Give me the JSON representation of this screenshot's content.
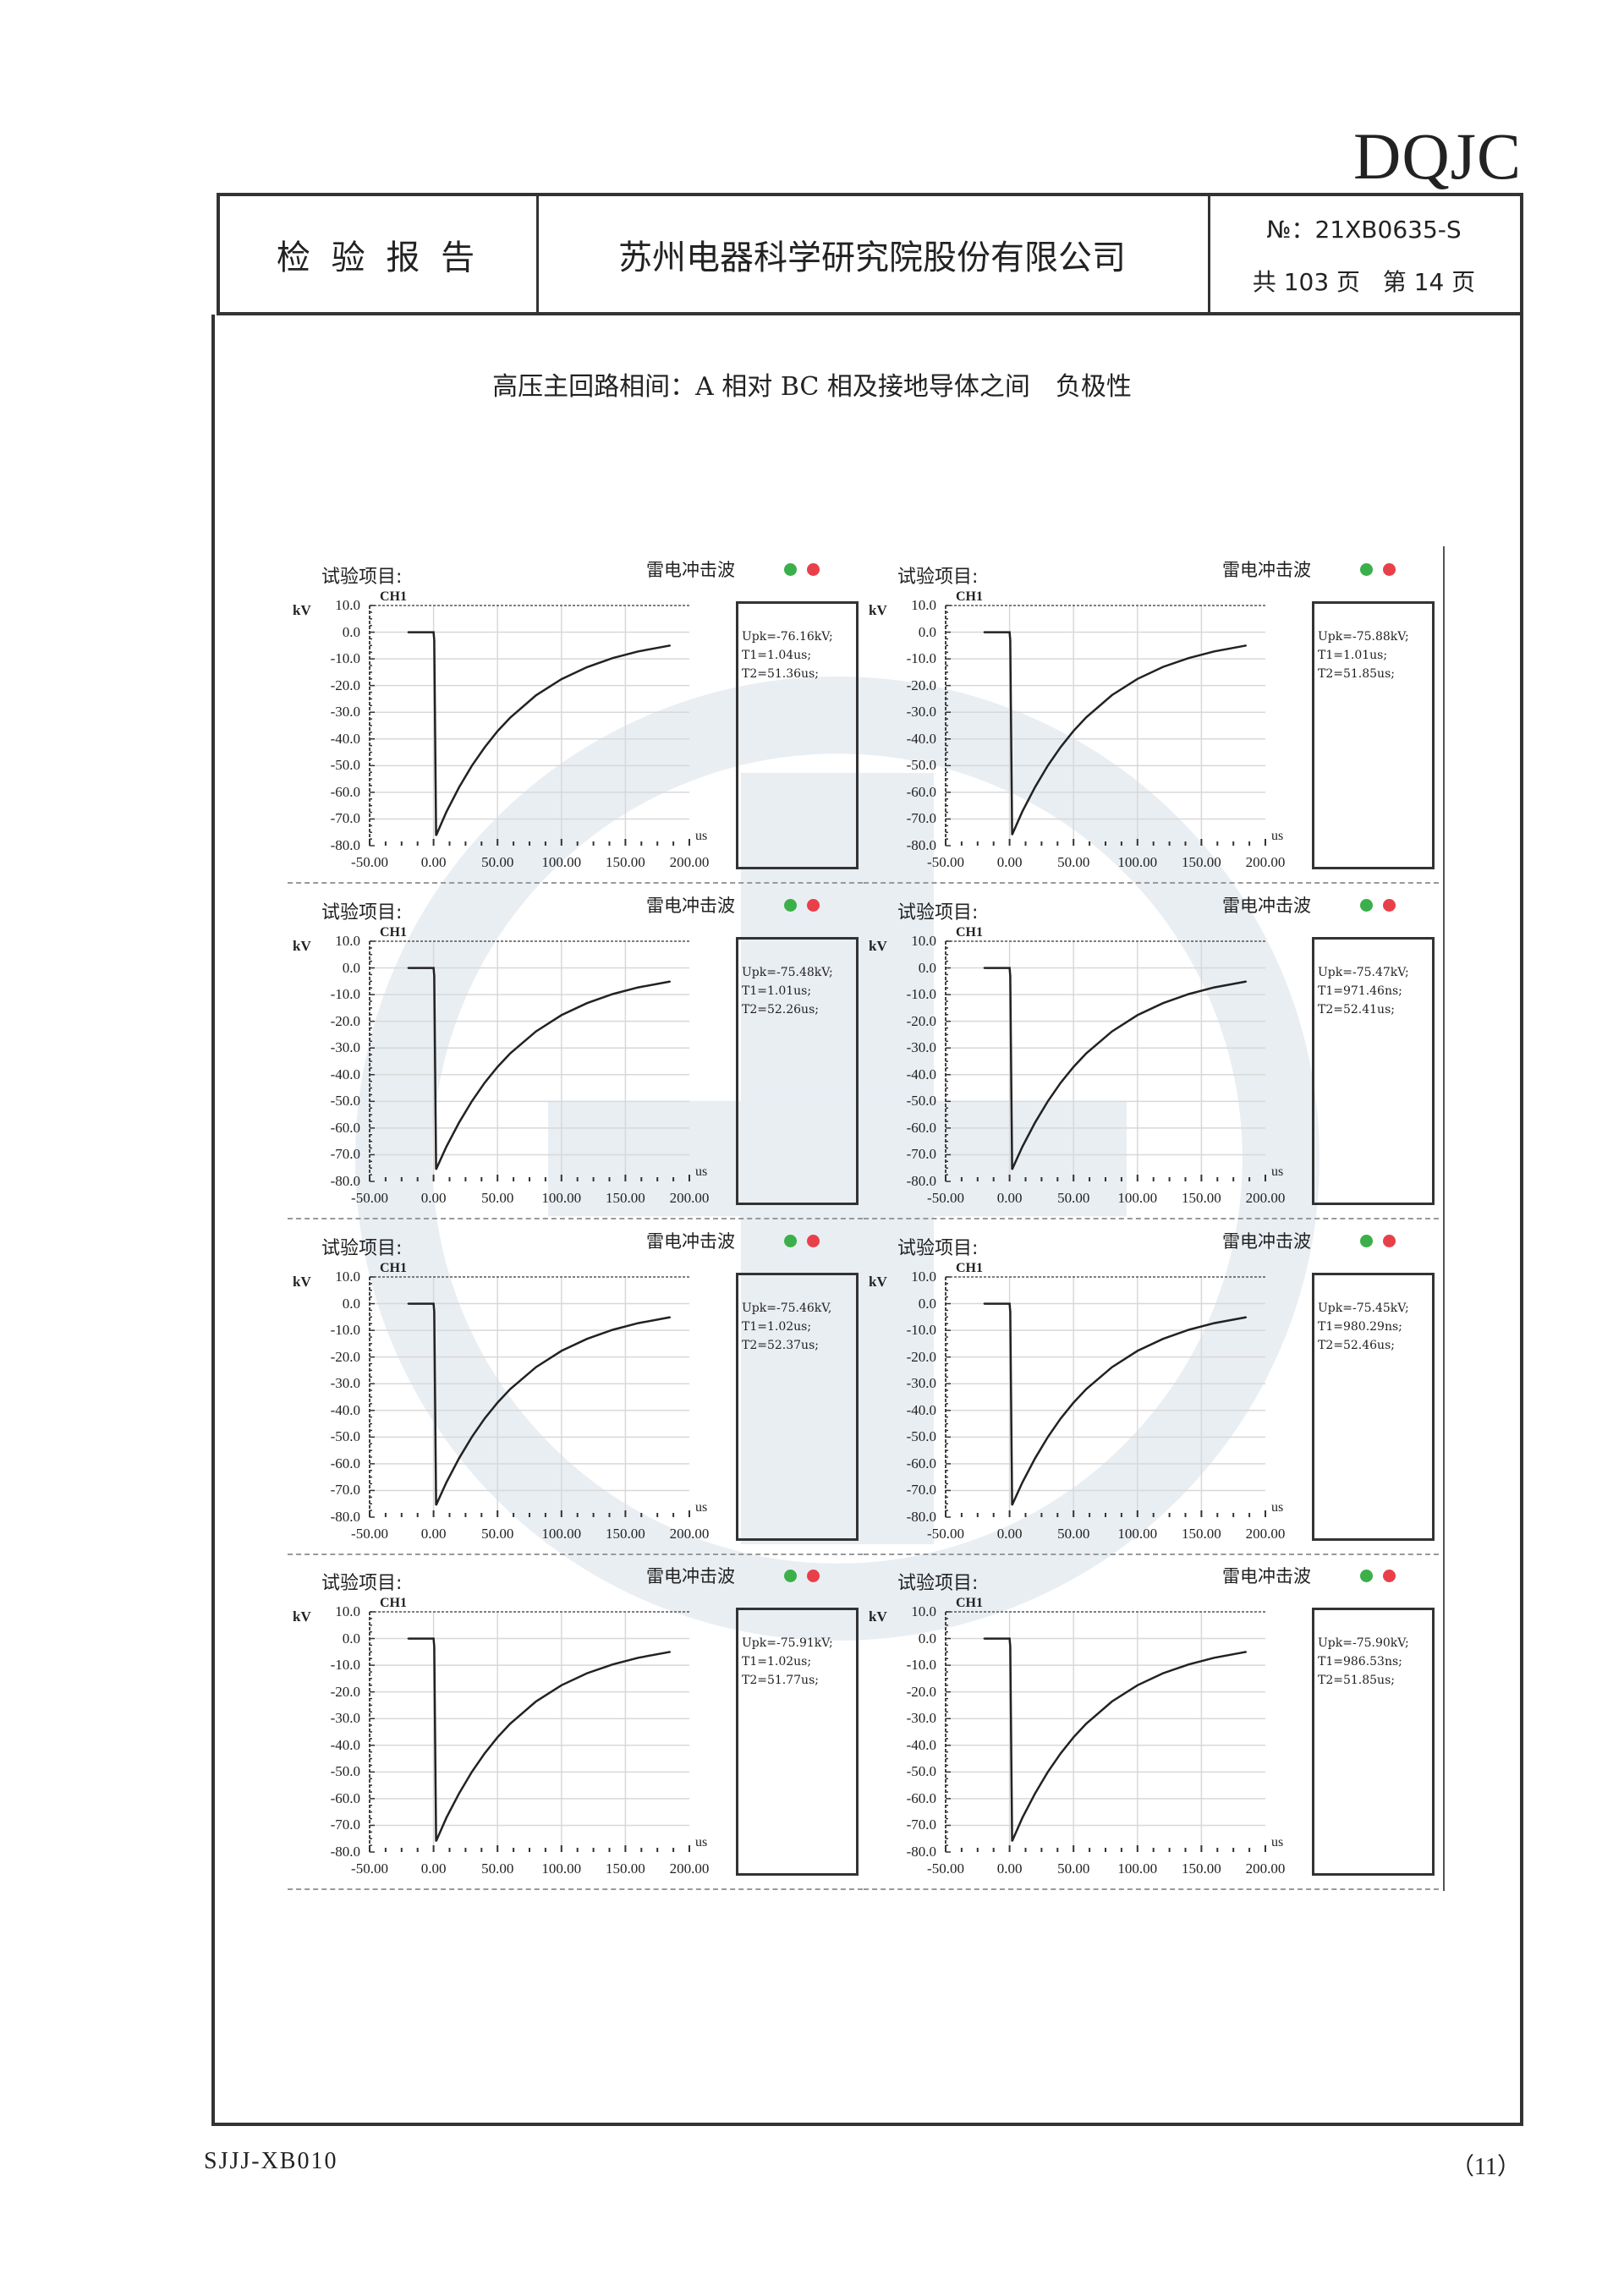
{
  "brand": "DQJC",
  "header": {
    "report_label": "检 验 报 告",
    "company": "苏州电器科学研究院股份有限公司",
    "number": "№：21XB0635-S",
    "pages_total": "共 103 页",
    "page_current": "第 14 页"
  },
  "subtitle": "高压主回路相间：A 相对 BC 相及接地导体之间　负极性",
  "footer": {
    "form_code": "SJJJ-XB010",
    "page_index": "（11）"
  },
  "colors": {
    "ok_indicator": "#3bb04a",
    "alarm_indicator": "#e8404a",
    "trace": "#222222",
    "grid": "#d8d8d8"
  },
  "chart_data": [
    {
      "type": "line",
      "test_item_label": "试验项目:",
      "wave_type": "雷电冲击波",
      "channel": "CH1",
      "ylabel": "kV",
      "xlabel": "us",
      "xlim": [
        -50,
        200
      ],
      "ylim": [
        -80,
        10
      ],
      "grid": true,
      "xtick_labels": [
        "-50.00",
        "0.00",
        "50.00",
        "100.00",
        "150.00",
        "200.00"
      ],
      "ytick_labels": [
        "10.0",
        "0.0",
        "-10.0",
        "-20.0",
        "-30.0",
        "-40.0",
        "-50.0",
        "-60.0",
        "-70.0",
        "-80.0"
      ],
      "results": [
        "Upk=-76.16kV;",
        "T1=1.04us;",
        "T2=51.36us;"
      ],
      "series": [
        {
          "x": [
            -20,
            0,
            0.5,
            2,
            10,
            20,
            30,
            40,
            50,
            60,
            80,
            100,
            120,
            140,
            160,
            185
          ],
          "y": [
            0,
            0,
            -3,
            -76.16,
            -67.4,
            -58.1,
            -50.0,
            -43.1,
            -37.1,
            -32.0,
            -23.7,
            -17.6,
            -13.1,
            -9.7,
            -7.2,
            -5.0
          ]
        }
      ]
    },
    {
      "type": "line",
      "test_item_label": "试验项目:",
      "wave_type": "雷电冲击波",
      "channel": "CH1",
      "ylabel": "kV",
      "xlabel": "us",
      "xlim": [
        -50,
        200
      ],
      "ylim": [
        -80,
        10
      ],
      "grid": true,
      "xtick_labels": [
        "-50.00",
        "0.00",
        "50.00",
        "100.00",
        "150.00",
        "200.00"
      ],
      "ytick_labels": [
        "10.0",
        "0.0",
        "-10.0",
        "-20.0",
        "-30.0",
        "-40.0",
        "-50.0",
        "-60.0",
        "-70.0",
        "-80.0"
      ],
      "results": [
        "Upk=-75.88kV;",
        "T1=1.01us;",
        "T2=51.85us;"
      ],
      "series": [
        {
          "x": [
            -20,
            0,
            0.5,
            2,
            10,
            20,
            30,
            40,
            50,
            60,
            80,
            100,
            120,
            140,
            160,
            185
          ],
          "y": [
            0,
            0,
            -3,
            -75.88,
            -67.2,
            -58.0,
            -49.9,
            -43.0,
            -37.0,
            -31.9,
            -23.6,
            -17.5,
            -13.0,
            -9.7,
            -7.2,
            -5.0
          ]
        }
      ]
    },
    {
      "type": "line",
      "test_item_label": "试验项目:",
      "wave_type": "雷电冲击波",
      "channel": "CH1",
      "ylabel": "kV",
      "xlabel": "us",
      "xlim": [
        -50,
        200
      ],
      "ylim": [
        -80,
        10
      ],
      "grid": true,
      "xtick_labels": [
        "-50.00",
        "0.00",
        "50.00",
        "100.00",
        "150.00",
        "200.00"
      ],
      "ytick_labels": [
        "10.0",
        "0.0",
        "-10.0",
        "-20.0",
        "-30.0",
        "-40.0",
        "-50.0",
        "-60.0",
        "-70.0",
        "-80.0"
      ],
      "results": [
        "Upk=-75.48kV;",
        "T1=1.01us;",
        "T2=52.26us;"
      ],
      "series": [
        {
          "x": [
            -20,
            0,
            0.5,
            2,
            10,
            20,
            30,
            40,
            50,
            60,
            80,
            100,
            120,
            140,
            160,
            185
          ],
          "y": [
            0,
            0,
            -3,
            -75.48,
            -67.0,
            -57.9,
            -49.9,
            -43.0,
            -37.1,
            -32.0,
            -23.8,
            -17.7,
            -13.2,
            -9.8,
            -7.3,
            -5.1
          ]
        }
      ]
    },
    {
      "type": "line",
      "test_item_label": "试验项目:",
      "wave_type": "雷电冲击波",
      "channel": "CH1",
      "ylabel": "kV",
      "xlabel": "us",
      "xlim": [
        -50,
        200
      ],
      "ylim": [
        -80,
        10
      ],
      "grid": true,
      "xtick_labels": [
        "-50.00",
        "0.00",
        "50.00",
        "100.00",
        "150.00",
        "200.00"
      ],
      "ytick_labels": [
        "10.0",
        "0.0",
        "-10.0",
        "-20.0",
        "-30.0",
        "-40.0",
        "-50.0",
        "-60.0",
        "-70.0",
        "-80.0"
      ],
      "results": [
        "Upk=-75.47kV;",
        "T1=971.46ns;",
        "T2=52.41us;"
      ],
      "series": [
        {
          "x": [
            -20,
            0,
            0.5,
            2,
            10,
            20,
            30,
            40,
            50,
            60,
            80,
            100,
            120,
            140,
            160,
            185
          ],
          "y": [
            0,
            0,
            -3,
            -75.47,
            -67.0,
            -57.9,
            -49.9,
            -43.0,
            -37.1,
            -32.0,
            -23.8,
            -17.7,
            -13.2,
            -9.8,
            -7.3,
            -5.1
          ]
        }
      ]
    },
    {
      "type": "line",
      "test_item_label": "试验项目:",
      "wave_type": "雷电冲击波",
      "channel": "CH1",
      "ylabel": "kV",
      "xlabel": "us",
      "xlim": [
        -50,
        200
      ],
      "ylim": [
        -80,
        10
      ],
      "grid": true,
      "xtick_labels": [
        "-50.00",
        "0.00",
        "50.00",
        "100.00",
        "150.00",
        "200.00"
      ],
      "ytick_labels": [
        "10.0",
        "0.0",
        "-10.0",
        "-20.0",
        "-30.0",
        "-40.0",
        "-50.0",
        "-60.0",
        "-70.0",
        "-80.0"
      ],
      "results": [
        "Upk=-75.46kV,",
        "T1=1.02us;",
        "T2=52.37us;"
      ],
      "series": [
        {
          "x": [
            -20,
            0,
            0.5,
            2,
            10,
            20,
            30,
            40,
            50,
            60,
            80,
            100,
            120,
            140,
            160,
            185
          ],
          "y": [
            0,
            0,
            -3,
            -75.46,
            -67.0,
            -57.9,
            -49.9,
            -43.0,
            -37.1,
            -32.0,
            -23.8,
            -17.7,
            -13.2,
            -9.8,
            -7.3,
            -5.1
          ]
        }
      ]
    },
    {
      "type": "line",
      "test_item_label": "试验项目:",
      "wave_type": "雷电冲击波",
      "channel": "CH1",
      "ylabel": "kV",
      "xlabel": "us",
      "xlim": [
        -50,
        200
      ],
      "ylim": [
        -80,
        10
      ],
      "grid": true,
      "xtick_labels": [
        "-50.00",
        "0.00",
        "50.00",
        "100.00",
        "150.00",
        "200.00"
      ],
      "ytick_labels": [
        "10.0",
        "0.0",
        "-10.0",
        "-20.0",
        "-30.0",
        "-40.0",
        "-50.0",
        "-60.0",
        "-70.0",
        "-80.0"
      ],
      "results": [
        "Upk=-75.45kV;",
        "T1=980.29ns;",
        "T2=52.46us;"
      ],
      "series": [
        {
          "x": [
            -20,
            0,
            0.5,
            2,
            10,
            20,
            30,
            40,
            50,
            60,
            80,
            100,
            120,
            140,
            160,
            185
          ],
          "y": [
            0,
            0,
            -3,
            -75.45,
            -67.0,
            -57.9,
            -49.9,
            -43.0,
            -37.1,
            -32.0,
            -23.8,
            -17.7,
            -13.2,
            -9.8,
            -7.3,
            -5.1
          ]
        }
      ]
    },
    {
      "type": "line",
      "test_item_label": "试验项目:",
      "wave_type": "雷电冲击波",
      "channel": "CH1",
      "ylabel": "kV",
      "xlabel": "us",
      "xlim": [
        -50,
        200
      ],
      "ylim": [
        -80,
        10
      ],
      "grid": true,
      "xtick_labels": [
        "-50.00",
        "0.00",
        "50.00",
        "100.00",
        "150.00",
        "200.00"
      ],
      "ytick_labels": [
        "10.0",
        "0.0",
        "-10.0",
        "-20.0",
        "-30.0",
        "-40.0",
        "-50.0",
        "-60.0",
        "-70.0",
        "-80.0"
      ],
      "results": [
        "Upk=-75.91kV;",
        "T1=1.02us;",
        "T2=51.77us;"
      ],
      "series": [
        {
          "x": [
            -20,
            0,
            0.5,
            2,
            10,
            20,
            30,
            40,
            50,
            60,
            80,
            100,
            120,
            140,
            160,
            185
          ],
          "y": [
            0,
            0,
            -3,
            -75.91,
            -67.2,
            -58.0,
            -49.9,
            -43.0,
            -37.0,
            -31.9,
            -23.6,
            -17.5,
            -13.0,
            -9.7,
            -7.2,
            -5.0
          ]
        }
      ]
    },
    {
      "type": "line",
      "test_item_label": "试验项目:",
      "wave_type": "雷电冲击波",
      "channel": "CH1",
      "ylabel": "kV",
      "xlabel": "us",
      "xlim": [
        -50,
        200
      ],
      "ylim": [
        -80,
        10
      ],
      "grid": true,
      "xtick_labels": [
        "-50.00",
        "0.00",
        "50.00",
        "100.00",
        "150.00",
        "200.00"
      ],
      "ytick_labels": [
        "10.0",
        "0.0",
        "-10.0",
        "-20.0",
        "-30.0",
        "-40.0",
        "-50.0",
        "-60.0",
        "-70.0",
        "-80.0"
      ],
      "results": [
        "Upk=-75.90kV;",
        "T1=986.53ns;",
        "T2=51.85us;"
      ],
      "series": [
        {
          "x": [
            -20,
            0,
            0.5,
            2,
            10,
            20,
            30,
            40,
            50,
            60,
            80,
            100,
            120,
            140,
            160,
            185
          ],
          "y": [
            0,
            0,
            -3,
            -75.9,
            -67.2,
            -58.0,
            -49.9,
            -43.0,
            -37.0,
            -31.9,
            -23.6,
            -17.5,
            -13.0,
            -9.7,
            -7.2,
            -5.0
          ]
        }
      ]
    }
  ]
}
